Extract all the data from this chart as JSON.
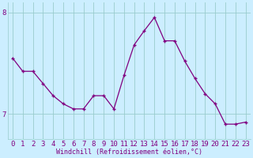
{
  "x": [
    0,
    1,
    2,
    3,
    4,
    5,
    6,
    7,
    8,
    9,
    10,
    11,
    12,
    13,
    14,
    15,
    16,
    17,
    18,
    19,
    20,
    21,
    22,
    23
  ],
  "y": [
    7.55,
    7.42,
    7.42,
    7.3,
    7.18,
    7.1,
    7.05,
    7.05,
    7.18,
    7.18,
    7.05,
    7.38,
    7.68,
    7.82,
    7.95,
    7.72,
    7.72,
    7.52,
    7.35,
    7.2,
    7.1,
    6.9,
    6.9,
    6.92
  ],
  "line_color": "#800080",
  "marker": "P",
  "markersize": 2.5,
  "linewidth": 0.9,
  "bg_color": "#cceeff",
  "grid_color": "#99cccc",
  "xlabel": "Windchill (Refroidissement éolien,°C)",
  "yticks": [
    7,
    8
  ],
  "ylim": [
    6.75,
    8.1
  ],
  "xlim": [
    -0.5,
    23.5
  ],
  "xlabel_fontsize": 6.0,
  "tick_fontsize": 6.5,
  "label_color": "#800080"
}
